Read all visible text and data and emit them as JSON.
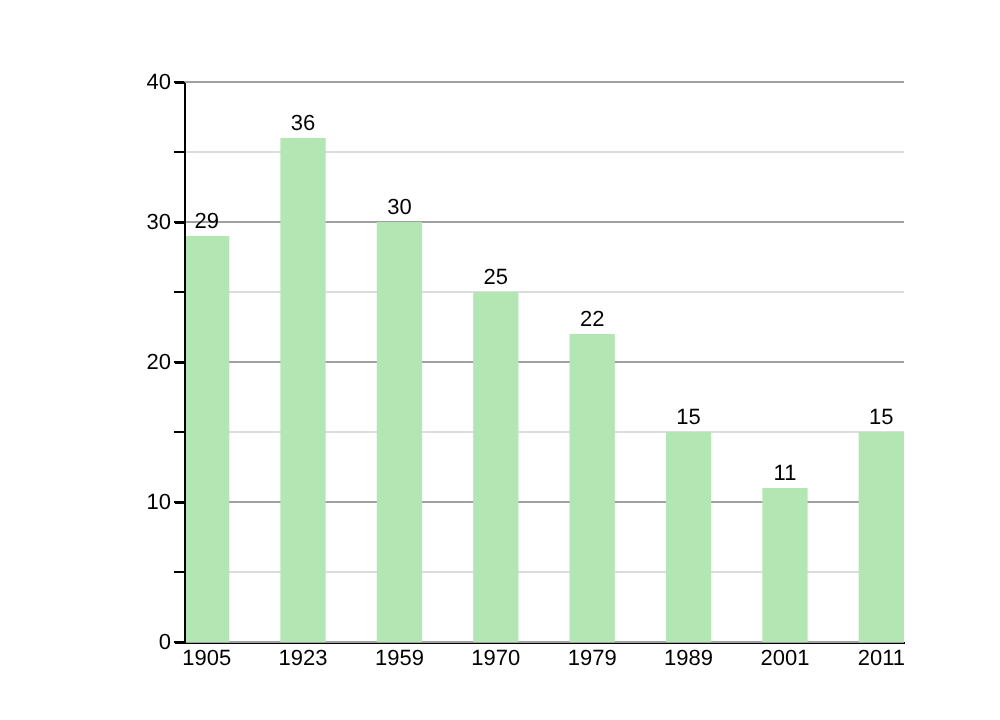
{
  "chart_data": {
    "type": "bar",
    "categories": [
      "1905",
      "1923",
      "1959",
      "1970",
      "1979",
      "1989",
      "2001",
      "2011"
    ],
    "values": [
      29,
      36,
      30,
      25,
      22,
      15,
      11,
      15
    ],
    "color": "#b3e6b3",
    "ylim": [
      0,
      40
    ],
    "yticks": [
      0,
      {
        "value": 5,
        "label": null
      },
      10,
      {
        "value": 15,
        "label": null
      },
      20,
      {
        "value": 25,
        "label": null
      },
      30,
      {
        "value": 35,
        "label": null
      },
      40
    ],
    "grid": "y",
    "data_labels": true
  }
}
